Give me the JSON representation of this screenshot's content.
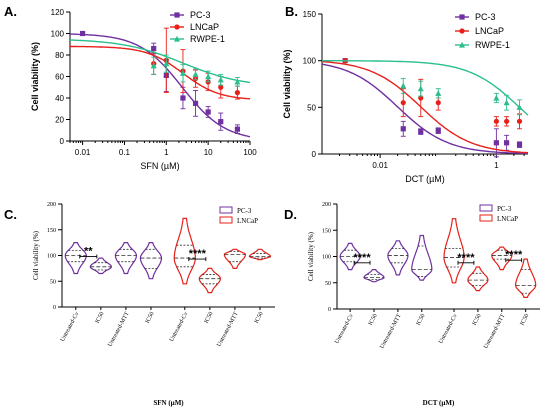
{
  "colors": {
    "pc3": "#7030a0",
    "lncap": "#e8201a",
    "rwpe": "#2bbf8e"
  },
  "chart_data": [
    {
      "panel_label": "A.",
      "type": "scatter",
      "xscale": "log",
      "xlim": [
        0.005,
        100
      ],
      "ylim": [
        0,
        120
      ],
      "xticks": [
        0.01,
        0.1,
        1,
        10,
        100
      ],
      "xtick_labels": [
        "0.01",
        "0.1",
        "1",
        "10",
        "100"
      ],
      "yticks": [
        0,
        20,
        40,
        60,
        80,
        100,
        120
      ],
      "xlabel": "SFN (µM)",
      "ylabel": "Cell viability (%)",
      "legend_position": "top-right",
      "series": [
        {
          "name": "PC-3",
          "color_key": "pc3",
          "marker": "square",
          "x": [
            0.01,
            0.5,
            1,
            2.5,
            5,
            10,
            20,
            50
          ],
          "y": [
            100,
            86,
            61,
            40,
            35,
            27,
            18,
            11
          ],
          "err": [
            0,
            5,
            15,
            10,
            12,
            5,
            8,
            4
          ],
          "fit": {
            "top": 100,
            "bottom": 0,
            "ic50": 2.4,
            "hill": 0.85
          }
        },
        {
          "name": "LNCaP",
          "color_key": "lncap",
          "marker": "circle",
          "x": [
            0.5,
            1,
            2.5,
            5,
            10,
            20,
            50
          ],
          "y": [
            72,
            75,
            65,
            58,
            55,
            50,
            45
          ],
          "err": [
            10,
            30,
            20,
            8,
            8,
            10,
            6
          ],
          "fit": {
            "top": 88,
            "bottom": 38,
            "ic50": 2.5,
            "hill": 1.0
          }
        },
        {
          "name": "RWPE-1",
          "color_key": "rwpe",
          "marker": "triangle",
          "x": [
            0.5,
            1,
            2.5,
            5,
            10,
            20,
            50
          ],
          "y": [
            70,
            72,
            63,
            62,
            60,
            57,
            55
          ],
          "err": [
            8,
            8,
            8,
            5,
            5,
            5,
            4
          ],
          "fit": {
            "top": 95,
            "bottom": 50,
            "ic50": 2.5,
            "hill": 0.6
          }
        }
      ]
    },
    {
      "panel_label": "B.",
      "type": "scatter",
      "xscale": "log",
      "xlim": [
        0.001,
        3.5
      ],
      "ylim": [
        0,
        150
      ],
      "xticks": [
        0.01,
        1
      ],
      "xtick_labels": [
        "0.01",
        "1"
      ],
      "yticks": [
        0,
        50,
        100,
        150
      ],
      "xlabel": "DCT (µM)",
      "ylabel": "Cell viability (%)",
      "legend_position": "top-right",
      "series": [
        {
          "name": "PC-3",
          "color_key": "pc3",
          "marker": "square",
          "x": [
            0.0025,
            0.025,
            0.05,
            0.1,
            1,
            1.5,
            2.5
          ],
          "y": [
            100,
            27,
            24,
            25,
            12,
            12,
            10
          ],
          "err": [
            0,
            8,
            3,
            3,
            15,
            8,
            3
          ],
          "fit": {
            "top": 101,
            "bottom": 0,
            "ic50": 0.02,
            "hill": 1.0
          }
        },
        {
          "name": "LNCaP",
          "color_key": "lncap",
          "marker": "circle",
          "x": [
            0.0025,
            0.025,
            0.05,
            0.1,
            1,
            1.5,
            2.5
          ],
          "y": [
            100,
            55,
            60,
            55,
            35,
            35,
            35
          ],
          "err": [
            0,
            15,
            20,
            8,
            5,
            5,
            8
          ],
          "fit": {
            "top": 101,
            "bottom": 0,
            "ic50": 0.05,
            "hill": 1.0
          }
        },
        {
          "name": "RWPE-1",
          "color_key": "rwpe",
          "marker": "triangle",
          "x": [
            0.025,
            0.05,
            0.1,
            1,
            1.5,
            2.5
          ],
          "y": [
            73,
            70,
            65,
            60,
            55,
            50
          ],
          "err": [
            8,
            8,
            5,
            5,
            8,
            8
          ],
          "fit": {
            "top": 100,
            "bottom": 0,
            "ic50": 2.5,
            "hill": 1.0
          }
        }
      ]
    },
    {
      "panel_label": "C.",
      "type": "violin",
      "ylim": [
        0,
        200
      ],
      "yticks": [
        0,
        50,
        100,
        150,
        200
      ],
      "ylabel": "Cell viability (%)",
      "xlabel": "SFN (µM)",
      "legend_position": "top-right",
      "legend": [
        "PC-3",
        "LNCaP"
      ],
      "categories": [
        "Untreated-Cv",
        "IC50",
        "Untreated-MTT",
        "IC50",
        "Untreated-Cv",
        "IC50",
        "Untreated-MTT",
        "IC50"
      ],
      "groups": [
        {
          "label": "Untreated-Cv",
          "series": "PC-3",
          "min": 65,
          "max": 125,
          "median": 100,
          "q1": 88,
          "q3": 110
        },
        {
          "label": "IC50",
          "series": "PC-3",
          "min": 65,
          "max": 95,
          "median": 78,
          "q1": 72,
          "q3": 86
        },
        {
          "label": "Untreated-MTT",
          "series": "PC-3",
          "min": 65,
          "max": 125,
          "median": 100,
          "q1": 88,
          "q3": 112
        },
        {
          "label": "IC50",
          "series": "PC-3",
          "min": 55,
          "max": 125,
          "median": 95,
          "q1": 75,
          "q3": 112
        },
        {
          "label": "Untreated-Cv",
          "series": "LNCaP",
          "min": 45,
          "max": 172,
          "median": 95,
          "q1": 78,
          "q3": 120
        },
        {
          "label": "IC50",
          "series": "LNCaP",
          "min": 28,
          "max": 75,
          "median": 55,
          "q1": 45,
          "q3": 63
        },
        {
          "label": "Untreated-MTT",
          "series": "LNCaP",
          "min": 75,
          "max": 112,
          "median": 102,
          "q1": 88,
          "q3": 108
        },
        {
          "label": "IC50",
          "series": "LNCaP",
          "min": 92,
          "max": 112,
          "median": 98,
          "q1": 95,
          "q3": 104
        }
      ],
      "significance": [
        {
          "from": 0,
          "to": 1,
          "label": "**",
          "y": 98
        },
        {
          "from": 4,
          "to": 5,
          "label": "****",
          "y": 93
        }
      ]
    },
    {
      "panel_label": "D.",
      "type": "violin",
      "ylim": [
        0,
        200
      ],
      "yticks": [
        0,
        50,
        100,
        150,
        200
      ],
      "ylabel": "Cell viability (%)",
      "xlabel": "DCT (µM)",
      "legend_position": "top-right",
      "legend": [
        "PC-3",
        "LNCaP"
      ],
      "categories": [
        "Untreated-Cv",
        "IC50",
        "Untreated-MTT",
        "IC50",
        "Untreated-Cv",
        "IC50",
        "Untreated-MTT",
        "IC50"
      ],
      "groups": [
        {
          "label": "Untreated-Cv",
          "series": "PC-3",
          "min": 75,
          "max": 125,
          "median": 100,
          "q1": 90,
          "q3": 112
        },
        {
          "label": "IC50",
          "series": "PC-3",
          "min": 52,
          "max": 75,
          "median": 60,
          "q1": 56,
          "q3": 66
        },
        {
          "label": "Untreated-MTT",
          "series": "PC-3",
          "min": 65,
          "max": 130,
          "median": 102,
          "q1": 88,
          "q3": 115
        },
        {
          "label": "IC50",
          "series": "PC-3",
          "min": 55,
          "max": 140,
          "median": 75,
          "q1": 62,
          "q3": 120
        },
        {
          "label": "Untreated-Cv",
          "series": "LNCaP",
          "min": 50,
          "max": 172,
          "median": 98,
          "q1": 80,
          "q3": 115
        },
        {
          "label": "IC50",
          "series": "LNCaP",
          "min": 35,
          "max": 80,
          "median": 55,
          "q1": 45,
          "q3": 68
        },
        {
          "label": "Untreated-MTT",
          "series": "LNCaP",
          "min": 75,
          "max": 118,
          "median": 102,
          "q1": 95,
          "q3": 112
        },
        {
          "label": "IC50",
          "series": "LNCaP",
          "min": 22,
          "max": 95,
          "median": 45,
          "q1": 30,
          "q3": 75
        }
      ],
      "significance": [
        {
          "from": 0,
          "to": 1,
          "label": "****",
          "y": 88
        },
        {
          "from": 4,
          "to": 5,
          "label": "****",
          "y": 88
        },
        {
          "from": 6,
          "to": 7,
          "label": "****",
          "y": 93
        }
      ]
    }
  ]
}
